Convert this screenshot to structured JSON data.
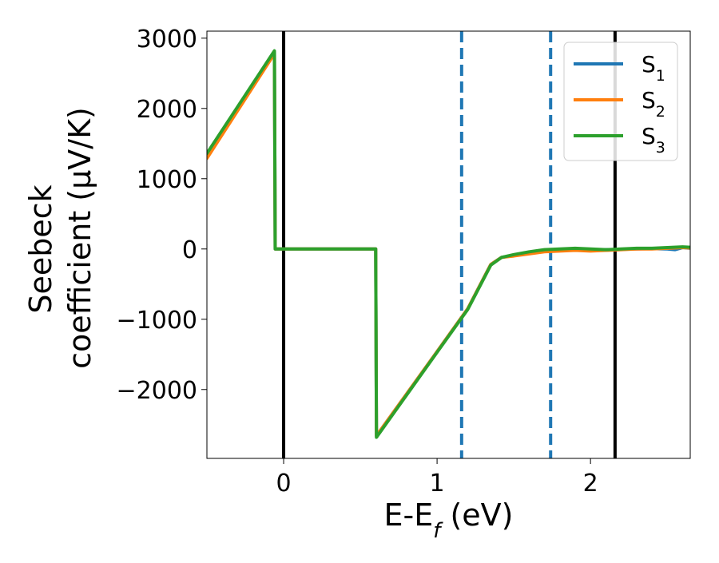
{
  "chart_data": {
    "type": "line",
    "xlabel": "E-E",
    "xlabel_sub": "f",
    "xlabel_unit": " (eV)",
    "ylabel_line1": "Seebeck",
    "ylabel_line2": "coefficient  (μV/K)",
    "xlim": [
      -0.5,
      2.65
    ],
    "ylim": [
      -2980,
      3100
    ],
    "xticks": [
      0,
      1,
      2
    ],
    "yticks": [
      3000,
      2000,
      1000,
      0,
      -1000,
      -2000
    ],
    "xtick_labels": [
      "0",
      "1",
      "2"
    ],
    "ytick_labels": [
      "3000",
      "2000",
      "1000",
      "0",
      "−1000",
      "−2000"
    ],
    "grid": false,
    "legend_position": "top-right",
    "vlines": [
      {
        "x": 0.0,
        "style": "solid",
        "color": "#000000"
      },
      {
        "x": 2.16,
        "style": "solid",
        "color": "#000000"
      },
      {
        "x": 1.16,
        "style": "dashed",
        "color": "#1f77b4"
      },
      {
        "x": 1.74,
        "style": "dashed",
        "color": "#1f77b4"
      }
    ],
    "series": [
      {
        "name": "S",
        "sub": "1",
        "color": "#1f77b4",
        "x": [
          -0.5,
          -0.06,
          -0.055,
          0.6,
          0.605,
          1.0,
          1.2,
          1.35,
          1.42,
          1.5,
          1.6,
          1.7,
          1.8,
          1.9,
          2.0,
          2.1,
          2.2,
          2.3,
          2.4,
          2.5,
          2.55,
          2.6,
          2.65
        ],
        "y": [
          1330,
          2810,
          0,
          0,
          -2660,
          -1460,
          -850,
          -220,
          -120,
          -90,
          -50,
          -30,
          -20,
          -10,
          -15,
          -10,
          -5,
          0,
          5,
          0,
          -10,
          20,
          10
        ]
      },
      {
        "name": "S",
        "sub": "2",
        "color": "#ff7f0e",
        "x": [
          -0.5,
          -0.06,
          -0.055,
          0.6,
          0.605,
          1.0,
          1.2,
          1.35,
          1.42,
          1.5,
          1.6,
          1.7,
          1.8,
          1.9,
          2.0,
          2.1,
          2.2,
          2.3,
          2.4,
          2.5,
          2.6,
          2.65
        ],
        "y": [
          1290,
          2780,
          0,
          0,
          -2660,
          -1460,
          -850,
          -220,
          -120,
          -100,
          -70,
          -40,
          -30,
          -20,
          -30,
          -20,
          -10,
          0,
          0,
          10,
          20,
          15
        ]
      },
      {
        "name": "S",
        "sub": "3",
        "color": "#2ca02c",
        "x": [
          -0.5,
          -0.06,
          -0.055,
          0.6,
          0.605,
          1.0,
          1.2,
          1.35,
          1.42,
          1.5,
          1.6,
          1.7,
          1.8,
          1.9,
          2.0,
          2.1,
          2.2,
          2.3,
          2.4,
          2.5,
          2.6,
          2.65
        ],
        "y": [
          1360,
          2820,
          0,
          0,
          -2680,
          -1470,
          -860,
          -230,
          -120,
          -80,
          -40,
          -10,
          0,
          10,
          0,
          -10,
          0,
          10,
          10,
          20,
          30,
          25
        ]
      }
    ]
  }
}
